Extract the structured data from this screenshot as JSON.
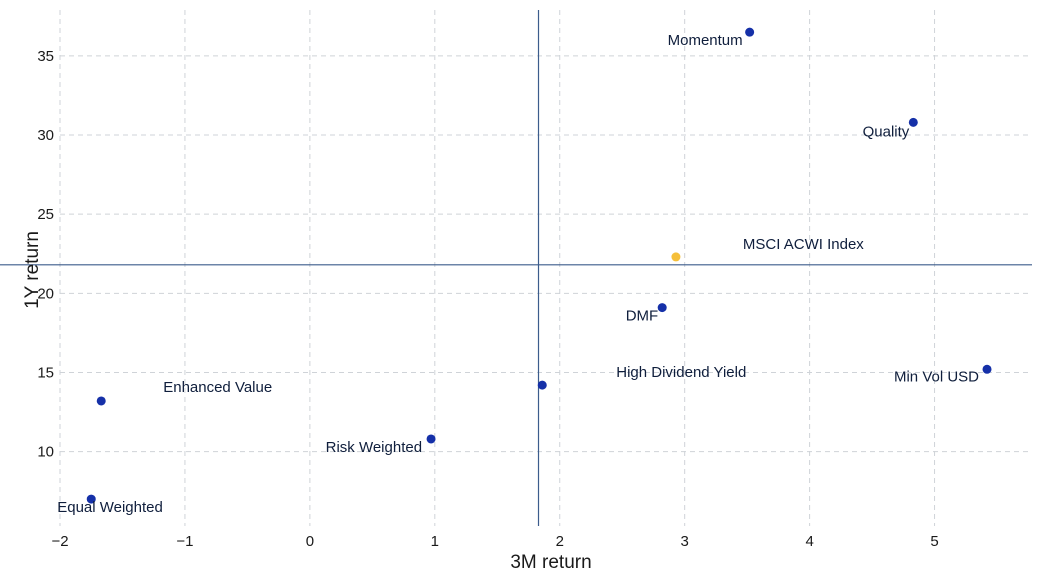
{
  "chart_data": {
    "type": "scatter",
    "xlabel": "3M return",
    "ylabel": "1Y return",
    "xlim": [
      -2.0,
      5.78
    ],
    "ylim": [
      5.3,
      37.9
    ],
    "x_ticks": [
      -2,
      -1,
      0,
      1,
      2,
      3,
      4,
      5
    ],
    "y_ticks": [
      10,
      15,
      20,
      25,
      30,
      35
    ],
    "x_tick_labels": [
      "−2",
      "−1",
      "0",
      "1",
      "2",
      "3",
      "4",
      "5"
    ],
    "y_tick_labels": [
      "10",
      "15",
      "20",
      "25",
      "30",
      "35"
    ],
    "grid": true,
    "reference_lines": {
      "x": 1.83,
      "y": 21.8
    },
    "colors": {
      "default": "#1530a8",
      "highlight": "#f5bf3a",
      "reference": "#3c5c8c"
    },
    "points": [
      {
        "label": "Momentum",
        "x": 3.52,
        "y": 36.5,
        "color": "#1530a8",
        "label_anchor": "end",
        "label_dx": -7,
        "label_dy": 13
      },
      {
        "label": "Quality",
        "x": 4.83,
        "y": 30.8,
        "color": "#1530a8",
        "label_anchor": "end",
        "label_dx": -4,
        "label_dy": 14
      },
      {
        "label": "MSCI ACWI Index",
        "x": 2.93,
        "y": 22.3,
        "color": "#f5bf3a",
        "label_anchor": "start",
        "label_dx": 67,
        "label_dy": -8
      },
      {
        "label": "DMF",
        "x": 2.82,
        "y": 19.1,
        "color": "#1530a8",
        "label_anchor": "end",
        "label_dx": -4,
        "label_dy": 13
      },
      {
        "label": "Min Vol USD",
        "x": 5.42,
        "y": 15.2,
        "color": "#1530a8",
        "label_anchor": "end",
        "label_dx": -8,
        "label_dy": 12
      },
      {
        "label": "High Dividend Yield",
        "x": 1.86,
        "y": 14.2,
        "color": "#1530a8",
        "label_anchor": "start",
        "label_dx": 74,
        "label_dy": -8
      },
      {
        "label": "Enhanced Value",
        "x": -1.67,
        "y": 13.2,
        "color": "#1530a8",
        "label_anchor": "start",
        "label_dx": 62,
        "label_dy": -9
      },
      {
        "label": "Risk Weighted",
        "x": 0.97,
        "y": 10.8,
        "color": "#1530a8",
        "label_anchor": "end",
        "label_dx": -9,
        "label_dy": 13
      },
      {
        "label": "Equal Weighted",
        "x": -1.75,
        "y": 7.0,
        "color": "#1530a8",
        "label_anchor": "start",
        "label_dx": -34,
        "label_dy": 13
      }
    ]
  }
}
